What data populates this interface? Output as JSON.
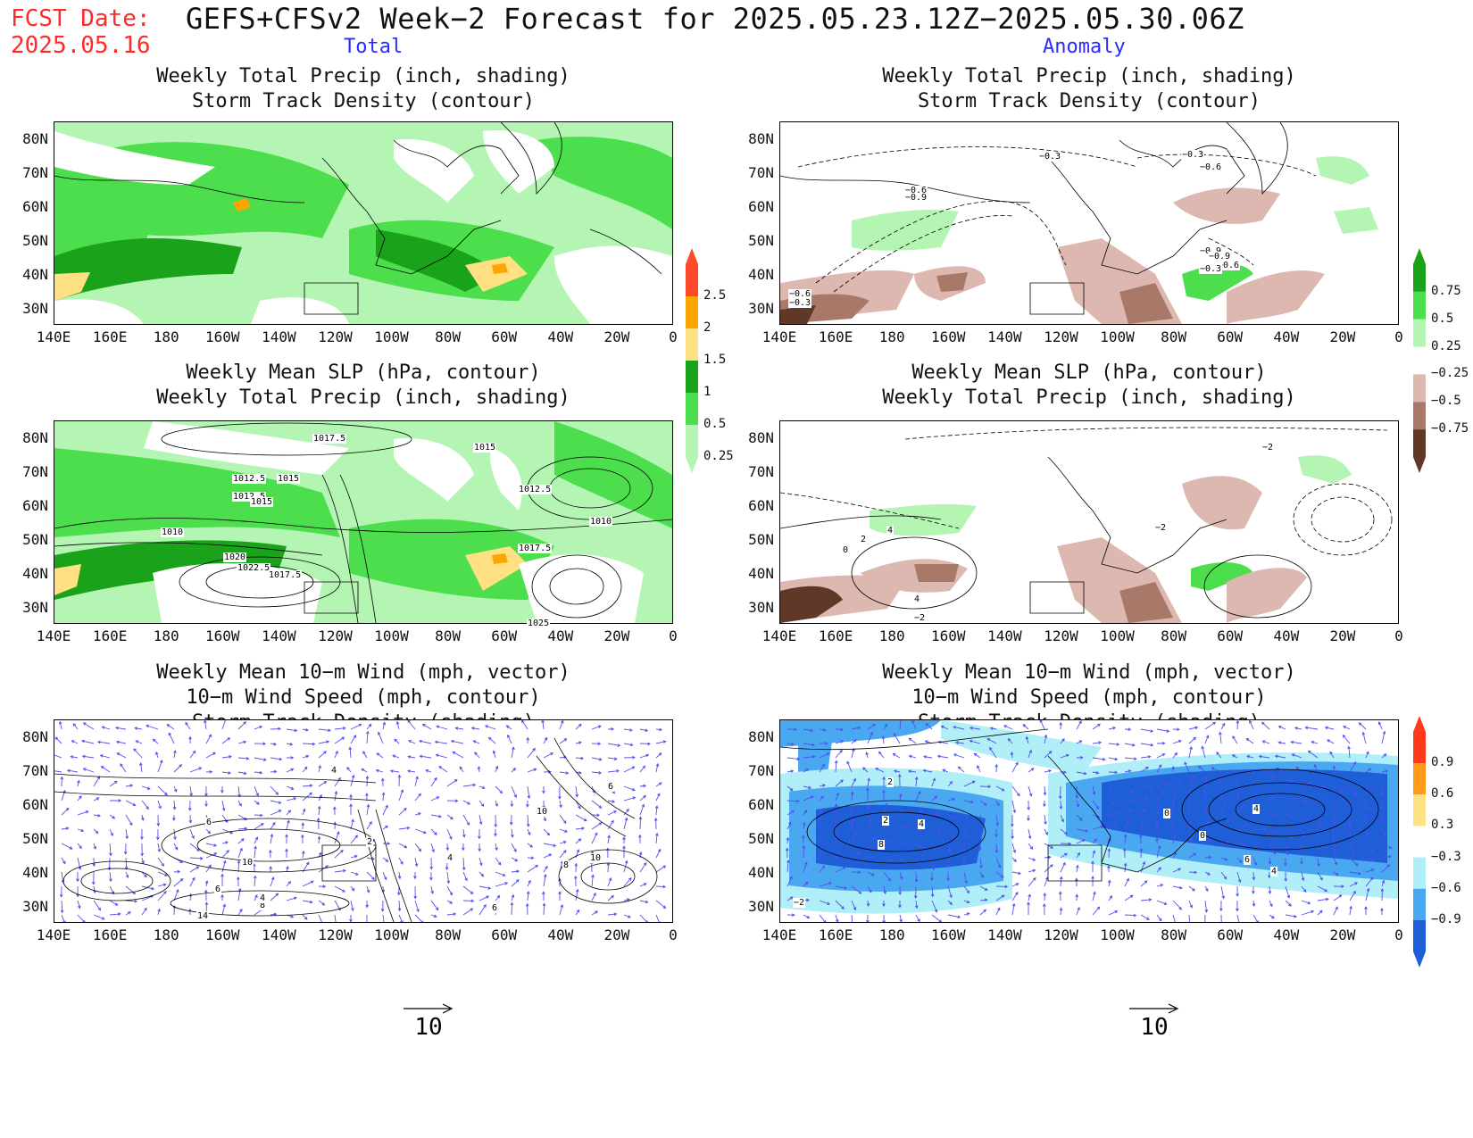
{
  "header": {
    "fcst_label": "FCST Date:",
    "fcst_date": "2025.05.16",
    "title": "GEFS+CFSv2 Week−2 Forecast for 2025.05.23.12Z−2025.05.30.06Z",
    "col_left": "Total",
    "col_right": "Anomaly"
  },
  "axes": {
    "lat_labels": [
      "80N",
      "70N",
      "60N",
      "50N",
      "40N",
      "30N"
    ],
    "lon_labels": [
      "140E",
      "160E",
      "180",
      "160W",
      "140W",
      "120W",
      "100W",
      "80W",
      "60W",
      "40W",
      "20W",
      "0"
    ]
  },
  "panels": {
    "p1": {
      "title1": "Weekly Total Precip (inch, shading)",
      "title2": "Storm Track Density (contour)"
    },
    "p2": {
      "title1": "Weekly Total Precip (inch, shading)",
      "title2": "Storm Track Density (contour)"
    },
    "p3": {
      "title1": "Weekly Mean SLP (hPa, contour)",
      "title2": "Weekly Total Precip (inch, shading)"
    },
    "p4": {
      "title1": "Weekly Mean SLP (hPa, contour)",
      "title2": "Weekly Total Precip (inch, shading)"
    },
    "p5": {
      "title1": "Weekly Mean 10−m Wind (mph, vector)",
      "title2": "10−m Wind Speed (mph, contour)",
      "title3": "Storm Track Density (shading)"
    },
    "p6": {
      "title1": "Weekly Mean 10−m Wind (mph, vector)",
      "title2": "10−m Wind Speed (mph, contour)",
      "title3": "Storm Track Density (shading)"
    }
  },
  "colorbars": {
    "precip_total": {
      "labels": [
        "2.5",
        "2",
        "1.5",
        "1",
        "0.5",
        "0.25"
      ],
      "colors": [
        "#ff4a2a",
        "#ffa500",
        "#ffe082",
        "#1aa31a",
        "#4cde4c",
        "#b4f5b4"
      ]
    },
    "precip_anom": {
      "labels": [
        "0.75",
        "0.5",
        "0.25",
        "−0.25",
        "−0.5",
        "−0.75"
      ],
      "colors": [
        "#1aa31a",
        "#4cde4c",
        "#b4f5b4",
        "#ffffff",
        "#dcb8b0",
        "#a87868",
        "#603828"
      ]
    },
    "storm_anom": {
      "labels": [
        "0.9",
        "0.6",
        "0.3",
        "−0.3",
        "−0.6",
        "−0.9"
      ],
      "colors": [
        "#ff3a1a",
        "#ff9a1a",
        "#ffe082",
        "#ffffff",
        "#b0eef8",
        "#4aa8f0",
        "#1e5fd8"
      ]
    }
  },
  "contour_labels": {
    "p2": [
      "−0.3",
      "−0.3",
      "−0.6",
      "−0.6",
      "−0.9",
      "−0.9",
      "−0.9",
      "−0.6",
      "−0.3",
      "−0.6",
      "−0.3"
    ],
    "p3": [
      "1017.5",
      "1015",
      "1012.5",
      "1015",
      "1012.5",
      "1015",
      "1010",
      "1012.5",
      "1010",
      "1017.5",
      "1020",
      "1022.5",
      "1017.5",
      "1025"
    ],
    "p4": [
      "−2",
      "−2",
      "4",
      "2",
      "0",
      "4",
      "−2"
    ],
    "p5": [
      "4",
      "6",
      "10",
      "6",
      "8",
      "14",
      "4",
      "10",
      "8",
      "10",
      "6",
      "2",
      "4",
      "6"
    ],
    "p6": [
      "2",
      "2",
      "4",
      "8",
      "0",
      "0",
      "4",
      "6",
      "4",
      "−2"
    ]
  },
  "vector_key": {
    "left": "10",
    "right": "10"
  }
}
